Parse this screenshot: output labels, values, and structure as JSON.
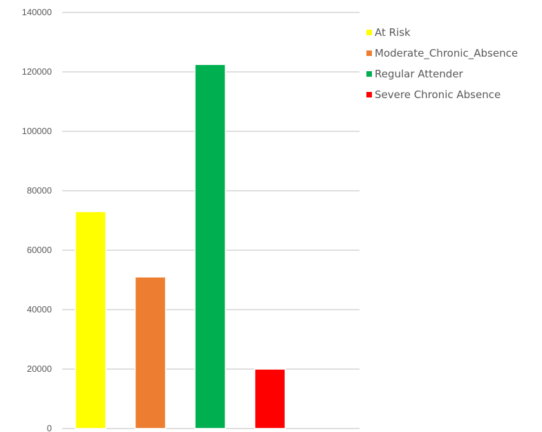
{
  "chart_data": {
    "type": "bar",
    "categories": [
      "At Risk",
      "Moderate_Chronic_Absence",
      "Regular Attender",
      "Severe Chronic Absence"
    ],
    "values": [
      73000,
      51000,
      122500,
      20000
    ],
    "colors": [
      "#ffff00",
      "#ed7d31",
      "#00b050",
      "#ff0000"
    ],
    "ylim": [
      0,
      140000
    ],
    "yticks": [
      "0",
      "20000",
      "40000",
      "60000",
      "80000",
      "100000",
      "120000",
      "140000"
    ],
    "grid": true,
    "legend_position": "top-right",
    "legend": [
      {
        "label": "At Risk",
        "color": "#ffff00"
      },
      {
        "label": "Moderate_Chronic_Absence",
        "color": "#ed7d31"
      },
      {
        "label": "Regular Attender",
        "color": "#00b050"
      },
      {
        "label": "Severe Chronic Absence",
        "color": "#ff0000"
      }
    ]
  }
}
